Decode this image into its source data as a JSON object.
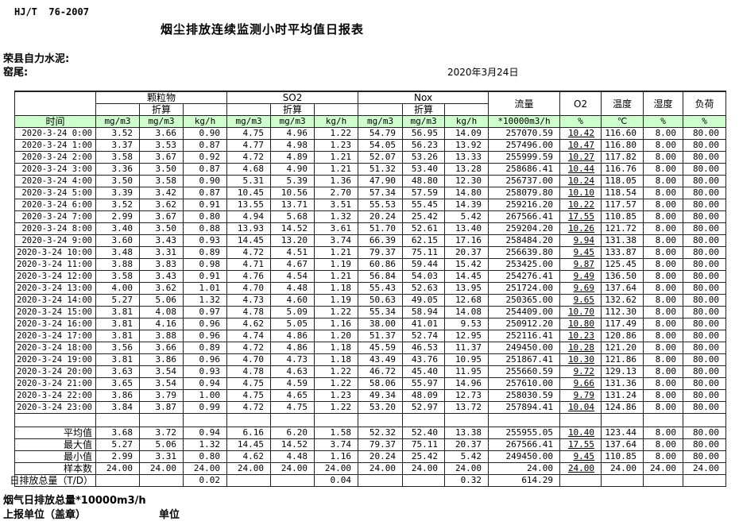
{
  "doc": {
    "standard": "HJ/T  76-2007",
    "title": "烟尘排放连续监测小时平均值日报表",
    "company": "荣县自力水泥:",
    "station": "窑尾:",
    "date": "2020年3月24日"
  },
  "table": {
    "time_header": "时间",
    "conv_label": "折算",
    "groups": {
      "pm": "颗粒物",
      "so2": "SO2",
      "nox": "Nox",
      "flow": "流量",
      "o2": "O2",
      "temp": "温度",
      "humidity": "湿度",
      "load": "负荷"
    },
    "units": [
      "mg/m3",
      "mg/m3",
      "kg/h",
      "mg/m3",
      "mg/m3",
      "kg/h",
      "mg/m3",
      "mg/m3",
      "kg/h",
      "*10000m3/h",
      "%",
      "℃",
      "%",
      "%"
    ],
    "rows": [
      {
        "time": "2020-3-24 0:00",
        "values": [
          "3.52",
          "3.66",
          "0.90",
          "4.75",
          "4.96",
          "1.22",
          "54.79",
          "56.95",
          "14.09",
          "257070.59",
          "10.42",
          "116.60",
          "8.00",
          "80.00"
        ]
      },
      {
        "time": "2020-3-24 1:00",
        "values": [
          "3.37",
          "3.53",
          "0.87",
          "4.77",
          "4.98",
          "1.23",
          "54.05",
          "56.23",
          "13.92",
          "257496.00",
          "10.47",
          "116.80",
          "8.00",
          "80.00"
        ]
      },
      {
        "time": "2020-3-24 2:00",
        "values": [
          "3.58",
          "3.67",
          "0.92",
          "4.72",
          "4.89",
          "1.21",
          "52.07",
          "53.26",
          "13.33",
          "255999.59",
          "10.27",
          "117.82",
          "8.00",
          "80.00"
        ]
      },
      {
        "time": "2020-3-24 3:00",
        "values": [
          "3.36",
          "3.50",
          "0.87",
          "4.68",
          "4.90",
          "1.21",
          "51.32",
          "53.40",
          "13.28",
          "258686.41",
          "10.44",
          "116.76",
          "8.00",
          "80.00"
        ]
      },
      {
        "time": "2020-3-24 4:00",
        "values": [
          "3.50",
          "3.58",
          "0.90",
          "5.31",
          "5.39",
          "1.36",
          "47.90",
          "48.80",
          "12.30",
          "256737.00",
          "10.24",
          "118.05",
          "8.00",
          "80.00"
        ]
      },
      {
        "time": "2020-3-24 5:00",
        "values": [
          "3.39",
          "3.42",
          "0.87",
          "10.45",
          "10.56",
          "2.70",
          "57.34",
          "57.59",
          "14.80",
          "258079.80",
          "10.10",
          "118.54",
          "8.00",
          "80.00"
        ]
      },
      {
        "time": "2020-3-24 6:00",
        "values": [
          "3.52",
          "3.62",
          "0.91",
          "13.55",
          "13.71",
          "3.51",
          "55.53",
          "55.45",
          "14.39",
          "259216.20",
          "10.22",
          "117.57",
          "8.00",
          "80.00"
        ]
      },
      {
        "time": "2020-3-24 7:00",
        "values": [
          "2.99",
          "3.67",
          "0.80",
          "4.94",
          "5.68",
          "1.32",
          "20.24",
          "25.42",
          "5.42",
          "267566.41",
          "17.55",
          "110.85",
          "8.00",
          "80.00"
        ]
      },
      {
        "time": "2020-3-24 8:00",
        "values": [
          "3.40",
          "3.50",
          "0.88",
          "13.93",
          "14.52",
          "3.61",
          "51.70",
          "52.61",
          "13.40",
          "259204.20",
          "10.26",
          "121.72",
          "8.00",
          "80.00"
        ]
      },
      {
        "time": "2020-3-24 9:00",
        "values": [
          "3.60",
          "3.43",
          "0.93",
          "14.45",
          "13.20",
          "3.74",
          "66.39",
          "62.15",
          "17.16",
          "258484.20",
          "9.94",
          "131.38",
          "8.00",
          "80.00"
        ]
      },
      {
        "time": "2020-3-24 10:00",
        "values": [
          "3.48",
          "3.31",
          "0.89",
          "4.72",
          "4.51",
          "1.21",
          "79.37",
          "75.11",
          "20.37",
          "256639.80",
          "9.45",
          "133.87",
          "8.00",
          "80.00"
        ]
      },
      {
        "time": "2020-3-24 11:00",
        "values": [
          "3.88",
          "3.83",
          "0.98",
          "4.71",
          "4.67",
          "1.19",
          "60.86",
          "59.44",
          "15.42",
          "253425.00",
          "9.87",
          "125.45",
          "8.00",
          "80.00"
        ]
      },
      {
        "time": "2020-3-24 12:00",
        "values": [
          "3.58",
          "3.43",
          "0.91",
          "4.76",
          "4.54",
          "1.21",
          "56.84",
          "54.03",
          "14.45",
          "254276.41",
          "9.49",
          "136.50",
          "8.00",
          "80.00"
        ]
      },
      {
        "time": "2020-3-24 13:00",
        "values": [
          "4.00",
          "3.62",
          "1.01",
          "4.70",
          "4.48",
          "1.18",
          "55.43",
          "52.63",
          "13.95",
          "251724.00",
          "9.69",
          "137.64",
          "8.00",
          "80.00"
        ]
      },
      {
        "time": "2020-3-24 14:00",
        "values": [
          "5.27",
          "5.06",
          "1.32",
          "4.73",
          "4.60",
          "1.19",
          "50.63",
          "49.05",
          "12.68",
          "250365.00",
          "9.65",
          "132.62",
          "8.00",
          "80.00"
        ]
      },
      {
        "time": "2020-3-24 15:00",
        "values": [
          "3.81",
          "4.08",
          "0.97",
          "4.78",
          "5.09",
          "1.22",
          "55.34",
          "58.94",
          "14.08",
          "254409.00",
          "10.70",
          "112.30",
          "8.00",
          "80.00"
        ]
      },
      {
        "time": "2020-3-24 16:00",
        "values": [
          "3.81",
          "4.16",
          "0.96",
          "4.62",
          "5.05",
          "1.16",
          "38.00",
          "41.01",
          "9.53",
          "250912.20",
          "10.80",
          "117.49",
          "8.00",
          "80.00"
        ]
      },
      {
        "time": "2020-3-24 17:00",
        "values": [
          "3.81",
          "3.88",
          "0.96",
          "4.74",
          "4.86",
          "1.20",
          "51.37",
          "52.74",
          "12.95",
          "252116.41",
          "10.23",
          "120.86",
          "8.00",
          "80.00"
        ]
      },
      {
        "time": "2020-3-24 18:00",
        "values": [
          "3.56",
          "3.66",
          "0.89",
          "4.72",
          "4.86",
          "1.18",
          "45.59",
          "46.53",
          "11.37",
          "249450.00",
          "10.28",
          "121.20",
          "8.00",
          "80.00"
        ]
      },
      {
        "time": "2020-3-24 19:00",
        "values": [
          "3.81",
          "3.86",
          "0.96",
          "4.70",
          "4.73",
          "1.18",
          "43.49",
          "43.76",
          "10.95",
          "251867.41",
          "10.30",
          "121.86",
          "8.00",
          "80.00"
        ]
      },
      {
        "time": "2020-3-24 20:00",
        "values": [
          "3.63",
          "3.54",
          "0.93",
          "4.78",
          "4.63",
          "1.22",
          "46.72",
          "45.40",
          "11.95",
          "255660.59",
          "9.72",
          "129.13",
          "8.00",
          "80.00"
        ]
      },
      {
        "time": "2020-3-24 21:00",
        "values": [
          "3.65",
          "3.54",
          "0.94",
          "4.75",
          "4.59",
          "1.22",
          "58.06",
          "55.97",
          "14.96",
          "257610.00",
          "9.66",
          "131.36",
          "8.00",
          "80.00"
        ]
      },
      {
        "time": "2020-3-24 22:00",
        "values": [
          "3.86",
          "3.79",
          "1.00",
          "4.75",
          "4.65",
          "1.23",
          "49.34",
          "48.09",
          "12.73",
          "258030.59",
          "9.79",
          "131.24",
          "8.00",
          "80.00"
        ]
      },
      {
        "time": "2020-3-24 23:00",
        "values": [
          "3.84",
          "3.87",
          "0.99",
          "4.72",
          "4.75",
          "1.22",
          "53.20",
          "52.97",
          "13.72",
          "257894.41",
          "10.04",
          "124.86",
          "8.00",
          "80.00"
        ]
      }
    ],
    "summary": [
      {
        "label": "平均值",
        "values": [
          "3.68",
          "3.72",
          "0.94",
          "6.16",
          "6.20",
          "1.58",
          "52.32",
          "52.40",
          "13.38",
          "255955.05",
          "10.40",
          "123.44",
          "8.00",
          "80.00"
        ]
      },
      {
        "label": "最大值",
        "values": [
          "5.27",
          "5.06",
          "1.32",
          "14.45",
          "14.52",
          "3.74",
          "79.37",
          "75.11",
          "20.37",
          "267566.41",
          "17.55",
          "137.64",
          "8.00",
          "80.00"
        ]
      },
      {
        "label": "最小值",
        "values": [
          "2.99",
          "3.31",
          "0.80",
          "4.62",
          "4.48",
          "1.16",
          "20.24",
          "25.42",
          "5.42",
          "249450.00",
          "9.45",
          "110.85",
          "8.00",
          "80.00"
        ]
      },
      {
        "label": "样本数",
        "values": [
          "24.00",
          "24.00",
          "24.00",
          "24.00",
          "24.00",
          "24.00",
          "24.00",
          "24.00",
          "24.00",
          "24.00",
          "24.00",
          "24.00",
          "24.00",
          "24.00"
        ]
      },
      {
        "label": "日排放总量（T/D）",
        "values": [
          "",
          "",
          "0.02",
          "",
          "",
          "0.04",
          "",
          "",
          "0.32",
          "614.29",
          "",
          "",
          "",
          ""
        ]
      }
    ]
  },
  "footer": {
    "note": "烟气日排放总量*10000m3/h",
    "report_unit": "上报单位（盖章）",
    "unit": "单位"
  },
  "colors": {
    "header_green": "#ccffcc",
    "border": "#222222"
  }
}
